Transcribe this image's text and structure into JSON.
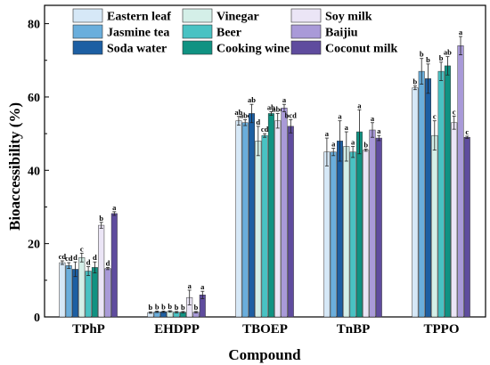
{
  "chart_data": {
    "type": "bar",
    "title": "",
    "xlabel": "Compound",
    "ylabel": "Bioaccessibility (%)",
    "ylim": [
      0,
      85
    ],
    "yticks": [
      0,
      20,
      40,
      60,
      80
    ],
    "categories": [
      "TPhP",
      "EHDPP",
      "TBOEP",
      "TnBP",
      "TPPO"
    ],
    "legend_position": "top",
    "series": [
      {
        "name": "Eastern leaf",
        "color": "#d6e8f7",
        "values": [
          14.8,
          1.2,
          53.5,
          45.0,
          62.5
        ],
        "errors": [
          0.5,
          0.2,
          1.2,
          3.8,
          0.5
        ],
        "sig": [
          "cd",
          "b",
          "ab",
          "a",
          "b"
        ]
      },
      {
        "name": "Jasmine tea",
        "color": "#6aaedc",
        "values": [
          14.0,
          1.4,
          53.0,
          45.0,
          67.0
        ],
        "errors": [
          0.8,
          0.2,
          0.8,
          1.0,
          3.5
        ],
        "sig": [
          "cd",
          "b",
          "abc",
          "a",
          "b"
        ]
      },
      {
        "name": "Soda water",
        "color": "#1d5fa3",
        "values": [
          13.0,
          1.4,
          55.5,
          48.0,
          65.0
        ],
        "errors": [
          2.0,
          0.2,
          2.5,
          5.5,
          4.0
        ],
        "sig": [
          "d",
          "b",
          "ab",
          "a",
          "b"
        ]
      },
      {
        "name": "Vinegar",
        "color": "#d4efe8",
        "values": [
          16.2,
          1.5,
          48.0,
          46.5,
          49.5
        ],
        "errors": [
          1.2,
          0.2,
          4.0,
          4.0,
          4.0
        ],
        "sig": [
          "c",
          "b",
          "d",
          "a",
          "c"
        ]
      },
      {
        "name": "Beer",
        "color": "#49c2c3",
        "values": [
          12.5,
          1.3,
          49.5,
          45.0,
          67.0
        ],
        "errors": [
          1.2,
          0.2,
          0.5,
          1.5,
          2.5
        ],
        "sig": [
          "d",
          "b",
          "cd",
          "a",
          "b"
        ]
      },
      {
        "name": "Cooking wine",
        "color": "#109282",
        "values": [
          13.5,
          1.3,
          55.5,
          50.5,
          68.5
        ],
        "errors": [
          1.5,
          0.2,
          0.5,
          6.0,
          2.5
        ],
        "sig": [
          "d",
          "b",
          "ab",
          "a",
          "ab"
        ]
      },
      {
        "name": "Soy milk",
        "color": "#ebe5f6",
        "values": [
          25.0,
          5.3,
          53.5,
          45.5,
          53.0
        ],
        "errors": [
          0.8,
          2.0,
          2.0,
          0.3,
          1.8
        ],
        "sig": [
          "b",
          "a",
          "abc",
          "b",
          "c"
        ]
      },
      {
        "name": "Baijiu",
        "color": "#a99ad8",
        "values": [
          13.2,
          1.3,
          57.0,
          51.0,
          74.0
        ],
        "errors": [
          0.3,
          0.2,
          1.0,
          2.0,
          2.5
        ],
        "sig": [
          "d",
          "b",
          "a",
          "a",
          "a"
        ]
      },
      {
        "name": "Coconut milk",
        "color": "#5f4c9e",
        "values": [
          28.2,
          6.0,
          52.0,
          48.8,
          49.0
        ],
        "errors": [
          0.5,
          1.0,
          1.8,
          0.7,
          0.3
        ],
        "sig": [
          "a",
          "a",
          "bcd",
          "a",
          "c"
        ]
      }
    ]
  }
}
